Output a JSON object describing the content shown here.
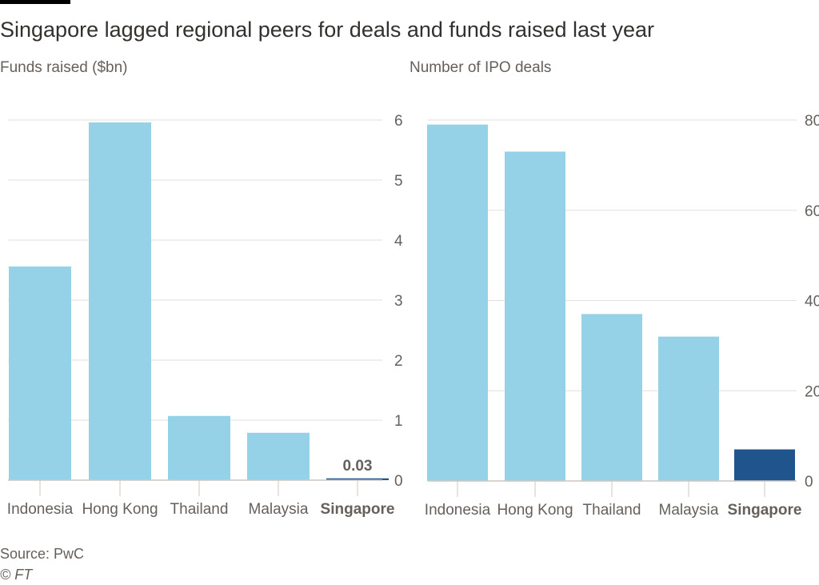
{
  "title": "Singapore lagged regional peers for deals and funds raised last year",
  "source": "Source: PwC",
  "copyright": "© FT",
  "colors": {
    "bar": "#96d2e7",
    "highlight": "#1f558c",
    "grid": "#e3dfdb",
    "text": "#66605c"
  },
  "chart_data": [
    {
      "type": "bar",
      "title": "Funds raised ($bn)",
      "categories": [
        "Indonesia",
        "Hong Kong",
        "Thailand",
        "Malaysia",
        "Singapore"
      ],
      "values": [
        3.56,
        5.96,
        1.07,
        0.79,
        0.03
      ],
      "highlight": "Singapore",
      "annotations": [
        {
          "category": "Singapore",
          "label": "0.03"
        }
      ],
      "ylim": [
        0,
        6
      ],
      "yticks": [
        0,
        1,
        2,
        3,
        4,
        5,
        6
      ],
      "ytick_labels": [
        "0",
        "1",
        "2",
        "3",
        "4",
        "5",
        "6"
      ],
      "grid": true,
      "axis_side": "right"
    },
    {
      "type": "bar",
      "title": "Number of IPO deals",
      "categories": [
        "Indonesia",
        "Hong Kong",
        "Thailand",
        "Malaysia",
        "Singapore"
      ],
      "values": [
        79,
        73,
        37,
        32,
        7
      ],
      "highlight": "Singapore",
      "ylim": [
        0,
        80
      ],
      "yticks": [
        0,
        20,
        40,
        60,
        80
      ],
      "ytick_labels": [
        "0",
        "20",
        "40",
        "60",
        "80"
      ],
      "grid": true,
      "axis_side": "right"
    }
  ]
}
